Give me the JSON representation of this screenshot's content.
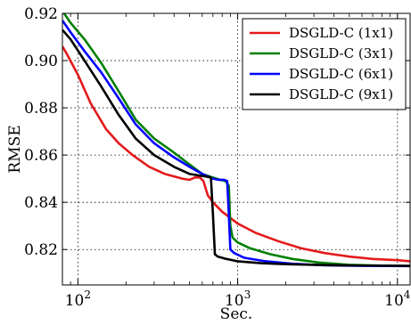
{
  "chart_data": {
    "type": "line",
    "xlabel": "Sec.",
    "ylabel": "RMSE",
    "xscale": "log",
    "xlim": [
      80,
      12000
    ],
    "ylim": [
      0.805,
      0.92
    ],
    "grid": true,
    "legend_position": "top-right",
    "x_ticks": [
      {
        "value": 100,
        "base": "10",
        "exp": "2"
      },
      {
        "value": 1000,
        "base": "10",
        "exp": "3"
      },
      {
        "value": 10000,
        "base": "10",
        "exp": "4"
      }
    ],
    "y_ticks": [
      {
        "value": 0.82,
        "label": "0.82"
      },
      {
        "value": 0.84,
        "label": "0.84"
      },
      {
        "value": 0.86,
        "label": "0.86"
      },
      {
        "value": 0.88,
        "label": "0.88"
      },
      {
        "value": 0.9,
        "label": "0.90"
      },
      {
        "value": 0.92,
        "label": "0.92"
      }
    ],
    "series": [
      {
        "name": "DSGLD-C (1x1)",
        "color": "#e41a1c",
        "points": [
          [
            80,
            0.906
          ],
          [
            85,
            0.903
          ],
          [
            100,
            0.894
          ],
          [
            120,
            0.882
          ],
          [
            150,
            0.871
          ],
          [
            180,
            0.865
          ],
          [
            220,
            0.86
          ],
          [
            280,
            0.855
          ],
          [
            350,
            0.852
          ],
          [
            450,
            0.85
          ],
          [
            500,
            0.8495
          ],
          [
            540,
            0.8505
          ],
          [
            580,
            0.8505
          ],
          [
            610,
            0.849
          ],
          [
            650,
            0.843
          ],
          [
            700,
            0.84
          ],
          [
            800,
            0.836
          ],
          [
            1000,
            0.831
          ],
          [
            1300,
            0.827
          ],
          [
            1800,
            0.8235
          ],
          [
            2500,
            0.8205
          ],
          [
            3500,
            0.8185
          ],
          [
            5000,
            0.817
          ],
          [
            7000,
            0.816
          ],
          [
            10000,
            0.8155
          ],
          [
            12000,
            0.815
          ]
        ]
      },
      {
        "name": "DSGLD-C (3x1)",
        "color": "#008000",
        "points": [
          [
            80,
            0.921
          ],
          [
            90,
            0.916
          ],
          [
            110,
            0.909
          ],
          [
            140,
            0.899
          ],
          [
            180,
            0.887
          ],
          [
            230,
            0.875
          ],
          [
            300,
            0.867
          ],
          [
            400,
            0.861
          ],
          [
            500,
            0.856
          ],
          [
            600,
            0.852
          ],
          [
            700,
            0.8505
          ],
          [
            780,
            0.8495
          ],
          [
            840,
            0.849
          ],
          [
            880,
            0.847
          ],
          [
            900,
            0.83
          ],
          [
            930,
            0.825
          ],
          [
            1000,
            0.823
          ],
          [
            1200,
            0.8205
          ],
          [
            1600,
            0.818
          ],
          [
            2200,
            0.816
          ],
          [
            3200,
            0.8145
          ],
          [
            5000,
            0.8135
          ],
          [
            8000,
            0.8132
          ],
          [
            12000,
            0.813
          ]
        ]
      },
      {
        "name": "DSGLD-C (6x1)",
        "color": "#0000ff",
        "points": [
          [
            80,
            0.917
          ],
          [
            90,
            0.912
          ],
          [
            110,
            0.904
          ],
          [
            140,
            0.895
          ],
          [
            180,
            0.884
          ],
          [
            230,
            0.873
          ],
          [
            300,
            0.865
          ],
          [
            400,
            0.859
          ],
          [
            500,
            0.855
          ],
          [
            600,
            0.852
          ],
          [
            700,
            0.85
          ],
          [
            760,
            0.8495
          ],
          [
            820,
            0.8495
          ],
          [
            860,
            0.849
          ],
          [
            880,
            0.835
          ],
          [
            900,
            0.82
          ],
          [
            950,
            0.8185
          ],
          [
            1100,
            0.8165
          ],
          [
            1500,
            0.815
          ],
          [
            2200,
            0.814
          ],
          [
            3500,
            0.8133
          ],
          [
            6000,
            0.8131
          ],
          [
            12000,
            0.813
          ]
        ]
      },
      {
        "name": "DSGLD-C (9x1)",
        "color": "#000000",
        "points": [
          [
            80,
            0.913
          ],
          [
            90,
            0.909
          ],
          [
            110,
            0.9
          ],
          [
            140,
            0.889
          ],
          [
            180,
            0.877
          ],
          [
            230,
            0.867
          ],
          [
            300,
            0.86
          ],
          [
            400,
            0.855
          ],
          [
            500,
            0.852
          ],
          [
            620,
            0.851
          ],
          [
            680,
            0.8505
          ],
          [
            700,
            0.835
          ],
          [
            720,
            0.818
          ],
          [
            750,
            0.817
          ],
          [
            850,
            0.816
          ],
          [
            1000,
            0.815
          ],
          [
            1400,
            0.8142
          ],
          [
            2000,
            0.8138
          ],
          [
            3500,
            0.8134
          ],
          [
            6000,
            0.8132
          ],
          [
            12000,
            0.8131
          ]
        ]
      }
    ]
  }
}
